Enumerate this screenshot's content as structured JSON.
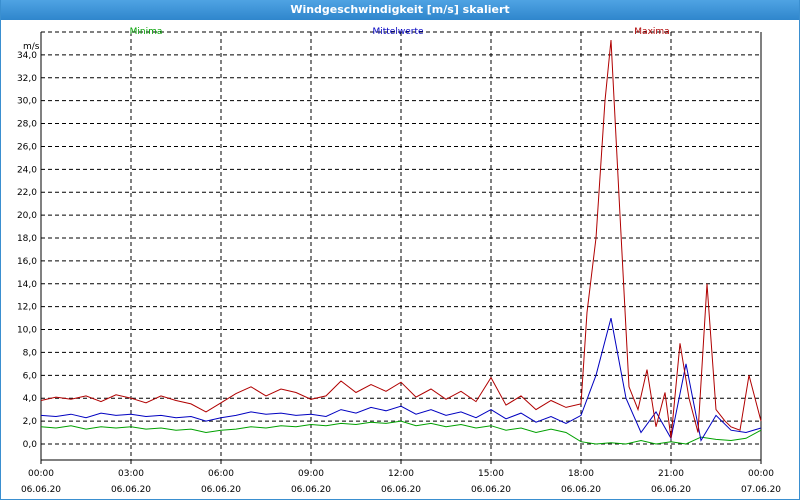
{
  "window": {
    "title": "Windgeschwindigkeit [m/s] skaliert"
  },
  "chart_data": {
    "type": "line",
    "title": "Windgeschwindigkeit [m/s] skaliert",
    "ylabel": "m/s",
    "ylim": [
      -1.4,
      36.0
    ],
    "y_ticks": [
      "0,0",
      "2,0",
      "4,0",
      "6,0",
      "8,0",
      "10,0",
      "12,0",
      "14,0",
      "16,0",
      "18,0",
      "20,0",
      "22,0",
      "24,0",
      "26,0",
      "28,0",
      "30,0",
      "32,0",
      "34,0"
    ],
    "y_tick_values": [
      0,
      2,
      4,
      6,
      8,
      10,
      12,
      14,
      16,
      18,
      20,
      22,
      24,
      26,
      28,
      30,
      32,
      34
    ],
    "x_range_hours": [
      0,
      24
    ],
    "x_ticks": [
      {
        "time": "00:00",
        "date": "06.06.20",
        "h": 0
      },
      {
        "time": "03:00",
        "date": "06.06.20",
        "h": 3
      },
      {
        "time": "06:00",
        "date": "06.06.20",
        "h": 6
      },
      {
        "time": "09:00",
        "date": "06.06.20",
        "h": 9
      },
      {
        "time": "12:00",
        "date": "06.06.20",
        "h": 12
      },
      {
        "time": "15:00",
        "date": "06.06.20",
        "h": 15
      },
      {
        "time": "18:00",
        "date": "06.06.20",
        "h": 18
      },
      {
        "time": "21:00",
        "date": "06.06.20",
        "h": 21
      },
      {
        "time": "00:00",
        "date": "07.06.20",
        "h": 24
      }
    ],
    "grid": true,
    "series": [
      {
        "name": "Minima",
        "color": "#00a000",
        "x": [
          0,
          0.5,
          1,
          1.5,
          2,
          2.5,
          3,
          3.5,
          4,
          4.5,
          5,
          5.5,
          6,
          6.5,
          7,
          7.5,
          8,
          8.5,
          9,
          9.5,
          10,
          10.5,
          11,
          11.5,
          12,
          12.5,
          13,
          13.5,
          14,
          14.5,
          15,
          15.5,
          16,
          16.5,
          17,
          17.5,
          18,
          18.5,
          19,
          19.5,
          20,
          20.5,
          21,
          21.5,
          22,
          22.5,
          23,
          23.5,
          24
        ],
        "values": [
          1.5,
          1.4,
          1.6,
          1.3,
          1.5,
          1.4,
          1.5,
          1.3,
          1.4,
          1.2,
          1.3,
          1.0,
          1.2,
          1.3,
          1.5,
          1.4,
          1.6,
          1.5,
          1.7,
          1.6,
          1.8,
          1.7,
          1.9,
          1.8,
          2.0,
          1.6,
          1.8,
          1.5,
          1.7,
          1.4,
          1.6,
          1.2,
          1.4,
          1.0,
          1.3,
          1.0,
          0.2,
          0.0,
          0.1,
          0.0,
          0.3,
          0.0,
          0.2,
          0.0,
          0.6,
          0.4,
          0.3,
          0.5,
          1.2
        ]
      },
      {
        "name": "Mittelwerte",
        "color": "#0000c0",
        "x": [
          0,
          0.5,
          1,
          1.5,
          2,
          2.5,
          3,
          3.5,
          4,
          4.5,
          5,
          5.5,
          6,
          6.5,
          7,
          7.5,
          8,
          8.5,
          9,
          9.5,
          10,
          10.5,
          11,
          11.5,
          12,
          12.5,
          13,
          13.5,
          14,
          14.5,
          15,
          15.5,
          16,
          16.5,
          17,
          17.5,
          18,
          18.5,
          19,
          19.5,
          20,
          20.5,
          21,
          21.5,
          22,
          22.5,
          23,
          23.5,
          24
        ],
        "values": [
          2.5,
          2.4,
          2.6,
          2.3,
          2.7,
          2.5,
          2.6,
          2.4,
          2.5,
          2.3,
          2.4,
          2.0,
          2.3,
          2.5,
          2.8,
          2.6,
          2.7,
          2.5,
          2.6,
          2.4,
          3.0,
          2.7,
          3.2,
          2.9,
          3.3,
          2.6,
          3.0,
          2.5,
          2.8,
          2.3,
          3.0,
          2.2,
          2.7,
          1.9,
          2.4,
          1.8,
          2.5,
          6.0,
          11.0,
          4.0,
          1.0,
          2.8,
          0.5,
          7.0,
          0.3,
          2.5,
          1.2,
          1.0,
          1.4
        ]
      },
      {
        "name": "Maxima",
        "color": "#b00000",
        "x": [
          0,
          0.5,
          1,
          1.5,
          2,
          2.5,
          3,
          3.5,
          4,
          4.5,
          5,
          5.5,
          6,
          6.5,
          7,
          7.5,
          8,
          8.5,
          9,
          9.5,
          10,
          10.5,
          11,
          11.5,
          12,
          12.5,
          13,
          13.5,
          14,
          14.5,
          15,
          15.5,
          16,
          16.5,
          17,
          17.5,
          18,
          18.2,
          18.5,
          18.8,
          19,
          19.3,
          19.6,
          19.9,
          20.2,
          20.5,
          20.8,
          21,
          21.3,
          21.6,
          21.9,
          22.2,
          22.5,
          22.8,
          23,
          23.3,
          23.6,
          24
        ],
        "values": [
          3.8,
          4.1,
          3.9,
          4.2,
          3.7,
          4.3,
          4.0,
          3.6,
          4.2,
          3.8,
          3.5,
          2.8,
          3.6,
          4.4,
          5.0,
          4.2,
          4.8,
          4.5,
          3.9,
          4.2,
          5.5,
          4.5,
          5.2,
          4.6,
          5.4,
          4.1,
          4.8,
          3.9,
          4.6,
          3.7,
          5.8,
          3.4,
          4.2,
          3.0,
          3.8,
          3.2,
          3.5,
          11.5,
          18.0,
          30.0,
          35.3,
          20.0,
          5.0,
          3.0,
          6.5,
          1.5,
          4.5,
          0.5,
          8.8,
          4.0,
          1.0,
          14.0,
          3.0,
          2.0,
          1.5,
          1.2,
          6.0,
          2.0
        ]
      }
    ]
  }
}
